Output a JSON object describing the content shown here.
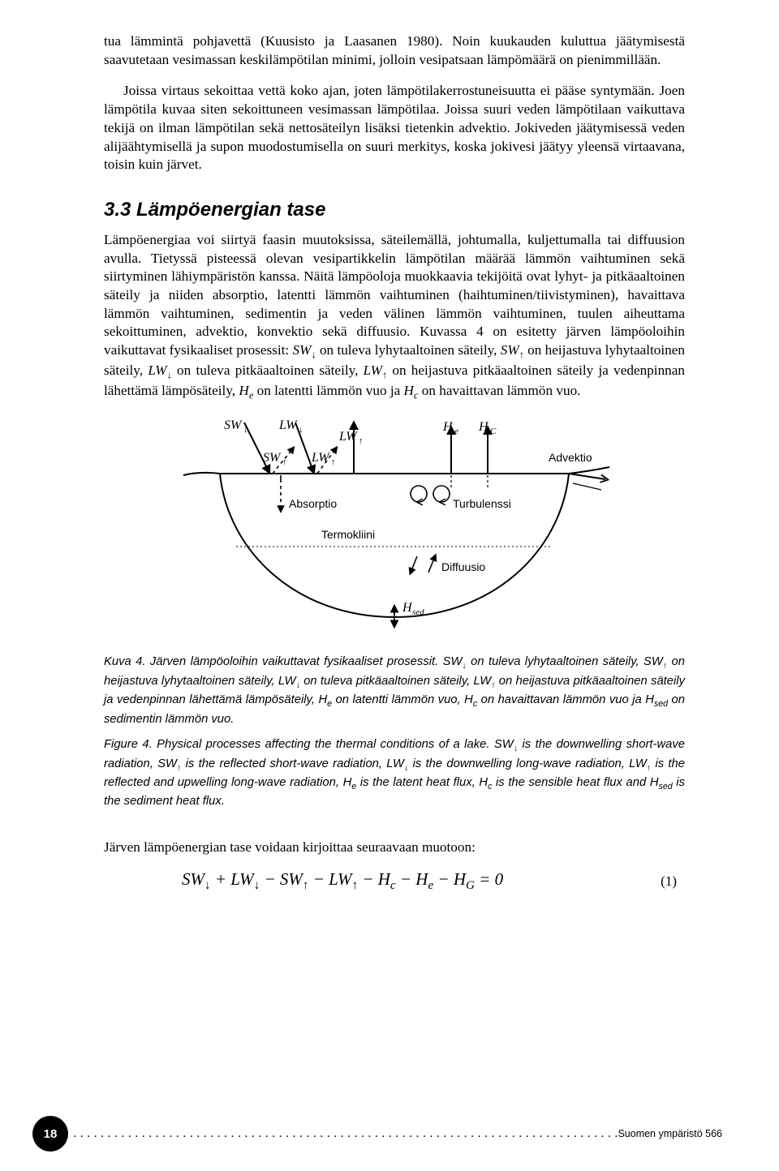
{
  "paragraphs": {
    "p1": "tua lämmintä pohjavettä (Kuusisto ja Laasanen 1980). Noin kuukauden kuluttua jäätymisestä saavutetaan vesimassan keskilämpötilan minimi, jolloin vesipatsaan lämpömäärä on pienimmillään.",
    "p2": "Joissa virtaus sekoittaa vettä koko ajan, joten lämpötilakerrostuneisuutta ei pääse syntymään. Joen lämpötila kuvaa siten sekoittuneen vesimassan lämpötilaa. Joissa suuri veden lämpötilaan vaikuttava tekijä on ilman lämpötilan sekä nettosäteilyn lisäksi tietenkin advektio. Jokiveden jäätymisessä veden alijäähtymisellä ja supon muodostumisella on suuri merkitys, koska jokivesi jäätyy yleensä virtaavana, toisin kuin järvet."
  },
  "section": {
    "number": "3.3",
    "title": "Lämpöenergian tase"
  },
  "section_body": {
    "p3_html": "Lämpöenergiaa voi siirtyä faasin muutoksissa, säteilemällä, johtumalla, kuljettumalla tai diffuusion avulla. Tietyssä pisteessä olevan vesipartikkelin lämpötilan määrää lämmön vaihtuminen sekä siirtyminen lähiympäristön kanssa. Näitä lämpöoloja muokkaavia tekijöitä ovat lyhyt- ja pitkäaaltoinen säteily ja niiden absorptio, latentti lämmön vaihtuminen (haihtuminen/tiivistyminen), havaittava lämmön vaihtuminen, sedimentin ja veden välinen lämmön vaihtuminen, tuulen aiheuttama sekoittuminen, advektio, konvektio sekä diffuusio. Kuvassa 4 on esitetty järven lämpöoloihin vaikuttavat fysikaaliset prosessit: <span class=\"ital\">SW</span><span class=\"sub\">↓</span> on tuleva lyhytaaltoinen säteily, <span class=\"ital\">SW</span><span class=\"sub\">↑</span> on heijastuva lyhytaaltoinen säteily, <span class=\"ital\">LW</span><span class=\"sub\">↓</span> on tuleva pitkäaaltoinen säteily, <span class=\"ital\">LW</span><span class=\"sub\">↑</span> on heijastuva pitkäaaltoinen säteily ja vedenpinnan lähettämä lämpösäteily, <span class=\"ital\">H<span class=\"sub\">e</span></span> on latentti lämmön vuo ja <span class=\"ital\">H<span class=\"sub\">c</span></span> on havaittavan lämmön vuo.",
    "p4": "Järven lämpöenergian tase voidaan kirjoittaa seuraavaan muotoon:"
  },
  "figure": {
    "labels": {
      "SW_down": "SW",
      "LW_down": "LW",
      "LW_up_top": "LW",
      "SW_up": "SW",
      "LW_up": "LW",
      "H": "H",
      "H_sub_e": "e",
      "H_sub_c": "C",
      "Advektio": "Advektio",
      "Absorptio": "Absorptio",
      "Turbulenssi": "Turbulenssi",
      "Termokliini": "Termokliini",
      "Diffuusio": "Diffuusio",
      "H_sed": "H",
      "H_sed_sub": "sed"
    },
    "style": {
      "stroke": "#000000",
      "stroke_width": 1.8,
      "dash_thermo": "2,3",
      "dash_small": "4,4",
      "bg": "#ffffff"
    }
  },
  "caption": {
    "fi_html": "Kuva 4. Järven lämpöoloihin vaikuttavat fysikaaliset prosessit. SW<span class=\"sub\">↓</span> on tuleva lyhytaaltoinen säteily, SW<span class=\"sub\">↑</span> on heijastuva lyhytaaltoinen säteily, LW<span class=\"sub\">↓</span> on tuleva pitkäaaltoinen säteily, LW<span class=\"sub\">↑</span> on heijastuva pitkäaaltoinen säteily ja vedenpinnan lähettämä lämpösäteily, H<span class=\"sub\">e</span> on latentti lämmön vuo, H<span class=\"sub\">c</span> on havaittavan lämmön vuo ja H<span class=\"sub\">sed</span> on sedimentin lämmön vuo.",
    "en_html": "Figure 4. Physical processes affecting the thermal conditions of a lake. SW<span class=\"sub\">↓</span> is the downwelling short-wave radiation, SW<span class=\"sub\">↑</span> is the reflected short-wave radiation, LW<span class=\"sub\">↓</span> is the downwelling long-wave radiation, LW<span class=\"sub\">↑</span> is the reflected and upwelling long-wave radiation, H<span class=\"sub\">e</span> is the latent heat flux, H<span class=\"sub\">c</span> is the sensible heat flux and H<span class=\"sub\">sed</span> is the sediment heat flux."
  },
  "equation": {
    "html": "SW<span class=\"sub\">↓</span> + LW<span class=\"sub\">↓</span> − SW<span class=\"sub\">↑</span> − LW<span class=\"sub\">↑</span> − H<span class=\"sub\" style=\"font-style:italic;\">c</span> − H<span class=\"sub\" style=\"font-style:italic;\">e</span> − H<span class=\"sub\" style=\"font-style:italic;\">G</span> = 0",
    "number": "(1)"
  },
  "footer": {
    "page": "18",
    "publication": "Suomen ympäristö 566"
  }
}
